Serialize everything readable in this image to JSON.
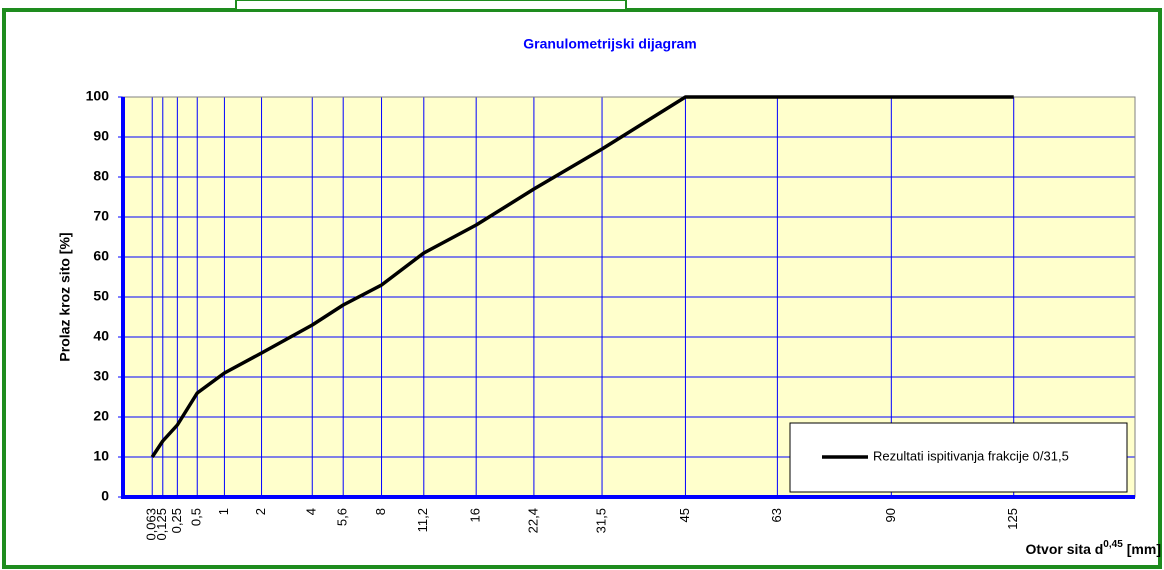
{
  "chart_data": {
    "type": "line",
    "title": "Granulometrijski dijagram",
    "ylabel": "Prolaz kroz sito [%]",
    "xlabel": "Otvor sita d",
    "xlabel_sup": "0,45",
    "xlabel_unit": "[mm]",
    "xscale": "power",
    "xpower": 0.45,
    "xlim": [
      0,
      166
    ],
    "xticks": [
      {
        "value": 0.063,
        "label": "0,063"
      },
      {
        "value": 0.125,
        "label": "0,125"
      },
      {
        "value": 0.25,
        "label": "0,25"
      },
      {
        "value": 0.5,
        "label": "0,5"
      },
      1,
      2,
      4,
      {
        "value": 5.6,
        "label": "5,6"
      },
      8,
      {
        "value": 11.2,
        "label": "11,2"
      },
      16,
      {
        "value": 22.4,
        "label": "22,4"
      },
      {
        "value": 31.5,
        "label": "31,5"
      },
      45,
      63,
      90,
      125
    ],
    "ylim": [
      0,
      100
    ],
    "yticks": [
      0,
      10,
      20,
      30,
      40,
      50,
      60,
      70,
      80,
      90,
      100
    ],
    "grid": true,
    "legend": "lower right",
    "series": [
      {
        "name": "Rezultati ispitivanja frakcije 0/31,5",
        "color": "#000000",
        "x": [
          0.063,
          0.125,
          0.25,
          0.5,
          1,
          2,
          4,
          5.6,
          8,
          11.2,
          16,
          22.4,
          31.5,
          45,
          63,
          90,
          125
        ],
        "values": [
          10,
          14,
          18,
          26,
          31,
          36,
          43,
          48,
          53,
          61,
          68,
          77,
          87,
          100,
          100,
          100,
          100
        ]
      }
    ]
  }
}
